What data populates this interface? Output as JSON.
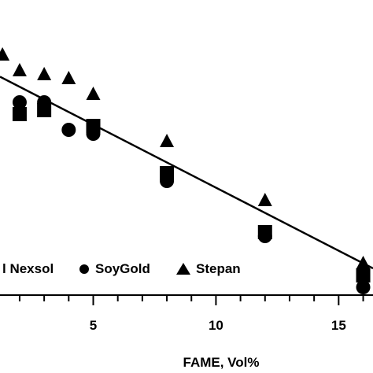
{
  "chart_data": {
    "type": "scatter",
    "xlabel": "FAME, Vol%",
    "ylabel": "",
    "title": "",
    "xlim": [
      1.2,
      16.4
    ],
    "x_ticks": [
      5,
      10,
      15
    ],
    "x_minor_step": 1,
    "grid": false,
    "legend_position": "bottom-left",
    "series": [
      {
        "name": "Nexsol",
        "marker": "square",
        "points": [
          [
            2,
            0.46
          ],
          [
            3,
            0.47
          ],
          [
            5,
            0.43
          ],
          [
            8,
            0.31
          ],
          [
            12,
            0.16
          ],
          [
            16,
            0.05
          ]
        ]
      },
      {
        "name": "SoyGold",
        "marker": "circle",
        "points": [
          [
            2,
            0.49
          ],
          [
            3,
            0.49
          ],
          [
            4,
            0.42
          ],
          [
            5,
            0.41
          ],
          [
            8,
            0.29
          ],
          [
            12,
            0.15
          ],
          [
            16,
            0.02
          ]
        ]
      },
      {
        "name": "Stepan",
        "marker": "triangle",
        "points": [
          [
            1.3,
            0.61
          ],
          [
            2,
            0.57
          ],
          [
            3,
            0.56
          ],
          [
            4,
            0.55
          ],
          [
            5,
            0.51
          ],
          [
            8,
            0.39
          ],
          [
            12,
            0.24
          ],
          [
            16,
            0.08
          ]
        ]
      }
    ],
    "trendline": {
      "x": [
        1.2,
        16.4
      ],
      "y": [
        0.555,
        0.068
      ]
    }
  },
  "legend": [
    {
      "label": "l Nexsol",
      "marker": "square"
    },
    {
      "label": "SoyGold",
      "marker": "circle"
    },
    {
      "label": "Stepan",
      "marker": "triangle"
    }
  ],
  "colors": {
    "ink": "#000000",
    "background": "#ffffff"
  }
}
